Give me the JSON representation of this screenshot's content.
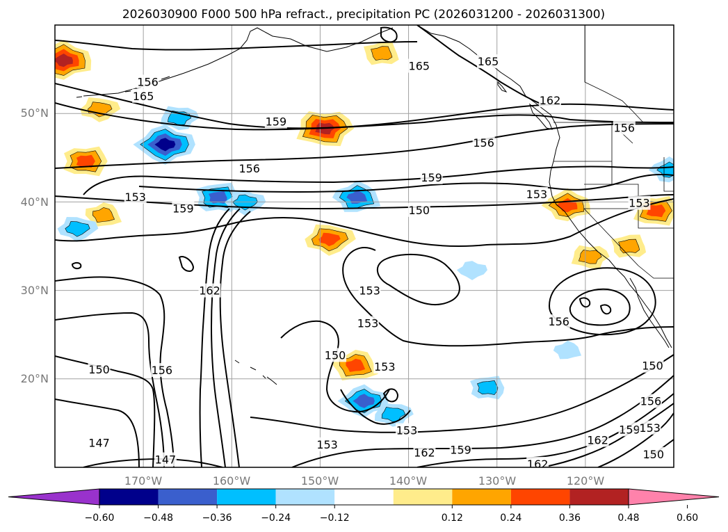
{
  "title": "2026030900 F000 500 hPa refract., precipitation PC (2026031200 - 2026031300)",
  "map": {
    "lon_range": [
      -180,
      -110
    ],
    "lat_range": [
      10,
      60
    ],
    "lon_ticks": [
      -170,
      -160,
      -150,
      -140,
      -130,
      -120
    ],
    "lon_tick_labels": [
      "170°W",
      "160°W",
      "150°W",
      "140°W",
      "130°W",
      "120°W"
    ],
    "lat_ticks": [
      20,
      30,
      40,
      50
    ],
    "lat_tick_labels": [
      "20°N",
      "30°N",
      "40°N",
      "50°N"
    ]
  },
  "contour_labels": [
    {
      "text": "165",
      "lon": -170.0,
      "lat": 52.0
    },
    {
      "text": "165",
      "lon": -138.8,
      "lat": 55.4
    },
    {
      "text": "165",
      "lon": -131.0,
      "lat": 55.9
    },
    {
      "text": "162",
      "lon": -124.0,
      "lat": 51.5
    },
    {
      "text": "159",
      "lon": -155.0,
      "lat": 49.1
    },
    {
      "text": "156",
      "lon": -169.5,
      "lat": 53.6
    },
    {
      "text": "156",
      "lon": -158.0,
      "lat": 43.8
    },
    {
      "text": "156",
      "lon": -131.5,
      "lat": 46.7
    },
    {
      "text": "156",
      "lon": -115.6,
      "lat": 48.4
    },
    {
      "text": "159",
      "lon": -137.4,
      "lat": 42.8
    },
    {
      "text": "153",
      "lon": -170.9,
      "lat": 40.6
    },
    {
      "text": "159",
      "lon": -165.5,
      "lat": 39.3
    },
    {
      "text": "153",
      "lon": -125.5,
      "lat": 40.9
    },
    {
      "text": "150",
      "lon": -138.8,
      "lat": 39.1
    },
    {
      "text": "153",
      "lon": -113.9,
      "lat": 39.9
    },
    {
      "text": "162",
      "lon": -162.5,
      "lat": 30.0
    },
    {
      "text": "153",
      "lon": -144.4,
      "lat": 30.0
    },
    {
      "text": "153",
      "lon": -144.6,
      "lat": 26.3
    },
    {
      "text": "150",
      "lon": -148.3,
      "lat": 22.7
    },
    {
      "text": "153",
      "lon": -142.7,
      "lat": 21.4
    },
    {
      "text": "156",
      "lon": -123.0,
      "lat": 26.5
    },
    {
      "text": "150",
      "lon": -175.0,
      "lat": 21.1
    },
    {
      "text": "156",
      "lon": -167.9,
      "lat": 21.0
    },
    {
      "text": "150",
      "lon": -112.4,
      "lat": 21.5
    },
    {
      "text": "156",
      "lon": -112.6,
      "lat": 17.5
    },
    {
      "text": "153",
      "lon": -140.2,
      "lat": 14.2
    },
    {
      "text": "153",
      "lon": -149.2,
      "lat": 12.6
    },
    {
      "text": "147",
      "lon": -175.0,
      "lat": 12.8
    },
    {
      "text": "147",
      "lon": -167.5,
      "lat": 10.9
    },
    {
      "text": "162",
      "lon": -138.2,
      "lat": 11.7
    },
    {
      "text": "159",
      "lon": -134.1,
      "lat": 12.0
    },
    {
      "text": "162",
      "lon": -118.6,
      "lat": 13.1
    },
    {
      "text": "159",
      "lon": -115.0,
      "lat": 14.3
    },
    {
      "text": "153",
      "lon": -112.7,
      "lat": 14.5
    },
    {
      "text": "162",
      "lon": -125.4,
      "lat": 10.4
    },
    {
      "text": "150",
      "lon": -112.3,
      "lat": 11.5
    }
  ],
  "precip_patches": [
    {
      "lon": -179.0,
      "lat": 56.0,
      "level": 0.48
    },
    {
      "lon": -175.0,
      "lat": 50.5,
      "level": 0.24
    },
    {
      "lon": -176.5,
      "lat": 44.6,
      "level": 0.36
    },
    {
      "lon": -174.5,
      "lat": 38.5,
      "level": 0.24
    },
    {
      "lon": -167.5,
      "lat": 46.5,
      "level": -0.48
    },
    {
      "lon": -166.0,
      "lat": 49.5,
      "level": -0.24
    },
    {
      "lon": -161.5,
      "lat": 40.5,
      "level": -0.36
    },
    {
      "lon": -145.8,
      "lat": 40.5,
      "level": -0.36
    },
    {
      "lon": -158.5,
      "lat": 40.0,
      "level": -0.24
    },
    {
      "lon": -149.5,
      "lat": 48.3,
      "level": 0.48
    },
    {
      "lon": -143.0,
      "lat": 56.8,
      "level": 0.24
    },
    {
      "lon": -122.0,
      "lat": 39.6,
      "level": 0.36
    },
    {
      "lon": -149.0,
      "lat": 35.8,
      "level": 0.36
    },
    {
      "lon": -112.0,
      "lat": 39.0,
      "level": 0.36
    },
    {
      "lon": -146.0,
      "lat": 21.5,
      "level": 0.36
    },
    {
      "lon": -145.0,
      "lat": 17.5,
      "level": -0.36
    },
    {
      "lon": -141.8,
      "lat": 16.0,
      "level": -0.24
    },
    {
      "lon": -131.0,
      "lat": 19.0,
      "level": -0.24
    },
    {
      "lon": -122.0,
      "lat": 23.2,
      "level": -0.12
    },
    {
      "lon": -132.8,
      "lat": 32.3,
      "level": -0.12
    },
    {
      "lon": -119.5,
      "lat": 33.8,
      "level": 0.24
    },
    {
      "lon": -115.0,
      "lat": 35.0,
      "level": 0.24
    },
    {
      "lon": -110.5,
      "lat": 43.6,
      "level": -0.24
    },
    {
      "lon": -177.5,
      "lat": 37.0,
      "level": -0.24
    }
  ],
  "colorbar": {
    "colors": [
      "#9932cc",
      "#00008b",
      "#3a5fcd",
      "#00bfff",
      "#b0e2ff",
      "#ffffff",
      "#ffec8b",
      "#ffa500",
      "#ff4500",
      "#b22222",
      "#ff82ab"
    ],
    "tick_values": [
      -0.6,
      -0.48,
      -0.36,
      -0.24,
      -0.12,
      0.12,
      0.24,
      0.36,
      0.48,
      0.6
    ],
    "tick_labels": [
      "−0.60",
      "−0.48",
      "−0.36",
      "−0.24",
      "−0.12",
      "0.12",
      "0.24",
      "0.36",
      "0.48",
      "0.60"
    ]
  }
}
